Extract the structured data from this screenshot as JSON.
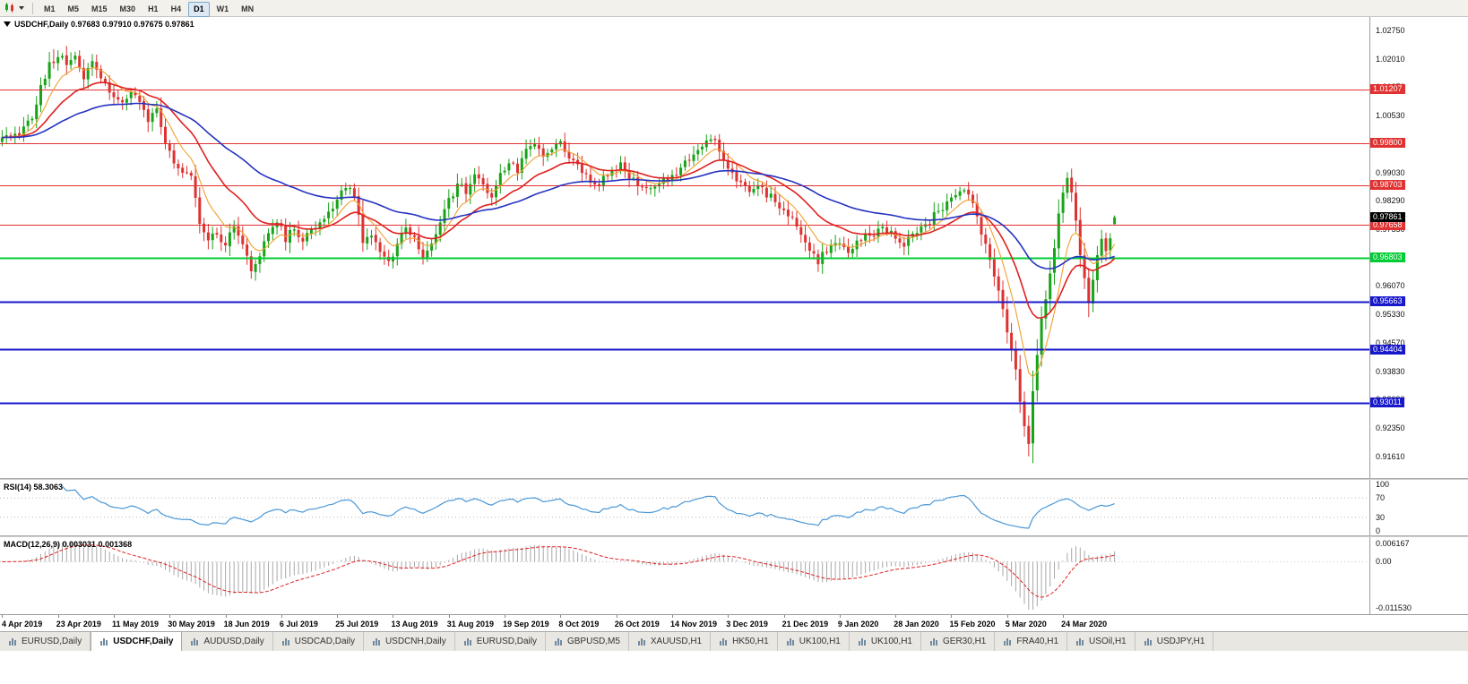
{
  "toolbar": {
    "timeframes": [
      "M1",
      "M5",
      "M15",
      "M30",
      "H1",
      "H4",
      "D1",
      "W1",
      "MN"
    ],
    "active_timeframe": "D1"
  },
  "price_chart": {
    "header": "USDCHF,Daily 0.97683 0.97910 0.97675 0.97861",
    "y_axis_labels": [
      "1.02750",
      "1.02010",
      "1.01270",
      "1.00530",
      "0.99800",
      "0.99030",
      "0.98290",
      "0.97550",
      "0.96810",
      "0.96070",
      "0.95330",
      "0.94570",
      "0.93830",
      "0.93090",
      "0.92350",
      "0.91610"
    ],
    "current_price_label": "0.97861"
  },
  "rsi_panel": {
    "label": "RSI(14) 58.3063",
    "axis_labels": [
      "100",
      "70",
      "30",
      "0"
    ],
    "guide_levels": [
      70,
      30
    ]
  },
  "macd_panel": {
    "label": "MACD(12,26,9) 0.003031 0.001368",
    "axis_labels": {
      "top": "0.006167",
      "zero": "0.00",
      "bottom": "-0.011530"
    }
  },
  "time_axis": {
    "labels": [
      "4 Apr 2019",
      "23 Apr 2019",
      "11 May 2019",
      "30 May 2019",
      "18 Jun 2019",
      "6 Jul 2019",
      "25 Jul 2019",
      "13 Aug 2019",
      "31 Aug 2019",
      "19 Sep 2019",
      "8 Oct 2019",
      "26 Oct 2019",
      "14 Nov 2019",
      "3 Dec 2019",
      "21 Dec 2019",
      "9 Jan 2020",
      "28 Jan 2020",
      "15 Feb 2020",
      "5 Mar 2020",
      "24 Mar 2020"
    ]
  },
  "tabs": {
    "items": [
      "EURUSD,Daily",
      "USDCHF,Daily",
      "AUDUSD,Daily",
      "USDCAD,Daily",
      "USDCNH,Daily",
      "EURUSD,Daily",
      "GBPUSD,M5",
      "XAUUSD,H1",
      "HK50,H1",
      "UK100,H1",
      "UK100,H1",
      "GER30,H1",
      "FRA40,H1",
      "USOil,H1",
      "USDJPY,H1"
    ],
    "active_index": 1
  },
  "chart_data": {
    "type": "candlestick",
    "symbol": "USDCHF",
    "timeframe": "Daily",
    "last_ohlc": {
      "open": 0.97683,
      "high": 0.9791,
      "low": 0.97675,
      "close": 0.97861
    },
    "n_candles": 260,
    "x_label_every": 13,
    "y_range": [
      0.9104,
      1.031
    ],
    "colors": {
      "up": "#18a318",
      "down": "#dd3232",
      "background": "#ffffff"
    },
    "close_anchors": [
      [
        0,
        0.9995
      ],
      [
        4,
        1.0005
      ],
      [
        7,
        1.0045
      ],
      [
        9,
        1.013
      ],
      [
        11,
        1.0185
      ],
      [
        13,
        1.0205
      ],
      [
        15,
        1.0192
      ],
      [
        17,
        1.0206
      ],
      [
        19,
        1.0158
      ],
      [
        21,
        1.0188
      ],
      [
        23,
        1.0148
      ],
      [
        26,
        1.0098
      ],
      [
        28,
        1.0085
      ],
      [
        30,
        1.0112
      ],
      [
        32,
        1.0088
      ],
      [
        34,
        1.0045
      ],
      [
        36,
        1.0062
      ],
      [
        38,
        0.9985
      ],
      [
        40,
        0.9932
      ],
      [
        42,
        0.9895
      ],
      [
        44,
        0.9902
      ],
      [
        46,
        0.9775
      ],
      [
        48,
        0.9725
      ],
      [
        50,
        0.9748
      ],
      [
        52,
        0.9712
      ],
      [
        54,
        0.9762
      ],
      [
        56,
        0.9722
      ],
      [
        58,
        0.9642
      ],
      [
        60,
        0.9682
      ],
      [
        62,
        0.9752
      ],
      [
        64,
        0.9772
      ],
      [
        66,
        0.9732
      ],
      [
        68,
        0.9755
      ],
      [
        70,
        0.9722
      ],
      [
        72,
        0.9748
      ],
      [
        74,
        0.9775
      ],
      [
        76,
        0.9792
      ],
      [
        78,
        0.9832
      ],
      [
        80,
        0.9868
      ],
      [
        82,
        0.9838
      ],
      [
        84,
        0.9728
      ],
      [
        86,
        0.9748
      ],
      [
        88,
        0.9702
      ],
      [
        90,
        0.9672
      ],
      [
        92,
        0.9708
      ],
      [
        94,
        0.9755
      ],
      [
        96,
        0.9735
      ],
      [
        98,
        0.9682
      ],
      [
        100,
        0.9728
      ],
      [
        102,
        0.9772
      ],
      [
        104,
        0.9828
      ],
      [
        106,
        0.9872
      ],
      [
        108,
        0.9855
      ],
      [
        110,
        0.9892
      ],
      [
        112,
        0.9868
      ],
      [
        114,
        0.9845
      ],
      [
        116,
        0.9898
      ],
      [
        118,
        0.9928
      ],
      [
        120,
        0.9912
      ],
      [
        122,
        0.9962
      ],
      [
        124,
        0.9988
      ],
      [
        126,
        0.9952
      ],
      [
        128,
        0.9968
      ],
      [
        130,
        0.9975
      ],
      [
        132,
        0.9938
      ],
      [
        134,
        0.9915
      ],
      [
        136,
        0.9892
      ],
      [
        138,
        0.9868
      ],
      [
        140,
        0.9888
      ],
      [
        142,
        0.9912
      ],
      [
        144,
        0.9922
      ],
      [
        146,
        0.9895
      ],
      [
        148,
        0.9872
      ],
      [
        150,
        0.9858
      ],
      [
        152,
        0.9872
      ],
      [
        154,
        0.9885
      ],
      [
        156,
        0.9892
      ],
      [
        158,
        0.9912
      ],
      [
        160,
        0.9938
      ],
      [
        162,
        0.9962
      ],
      [
        164,
        0.9978
      ],
      [
        166,
        0.9988
      ],
      [
        168,
        0.9938
      ],
      [
        170,
        0.9902
      ],
      [
        172,
        0.9878
      ],
      [
        174,
        0.9858
      ],
      [
        176,
        0.9872
      ],
      [
        178,
        0.9842
      ],
      [
        180,
        0.9832
      ],
      [
        182,
        0.9802
      ],
      [
        184,
        0.9778
      ],
      [
        186,
        0.9738
      ],
      [
        188,
        0.9698
      ],
      [
        190,
        0.9672
      ],
      [
        192,
        0.9702
      ],
      [
        195,
        0.9718
      ],
      [
        197,
        0.9692
      ],
      [
        199,
        0.9722
      ],
      [
        201,
        0.9745
      ],
      [
        203,
        0.9732
      ],
      [
        205,
        0.9762
      ],
      [
        208,
        0.9738
      ],
      [
        210,
        0.9712
      ],
      [
        212,
        0.9745
      ],
      [
        214,
        0.9765
      ],
      [
        216,
        0.9778
      ],
      [
        218,
        0.9808
      ],
      [
        220,
        0.9818
      ],
      [
        222,
        0.9838
      ],
      [
        224,
        0.9852
      ],
      [
        226,
        0.9832
      ],
      [
        228,
        0.9742
      ],
      [
        230,
        0.9672
      ],
      [
        232,
        0.9602
      ],
      [
        234,
        0.9492
      ],
      [
        235,
        0.9435
      ],
      [
        236,
        0.9392
      ],
      [
        237,
        0.9312
      ],
      [
        238,
        0.9242
      ],
      [
        239,
        0.9192
      ],
      [
        240,
        0.9332
      ],
      [
        241,
        0.9422
      ],
      [
        242,
        0.9512
      ],
      [
        243,
        0.9562
      ],
      [
        244,
        0.9632
      ],
      [
        245,
        0.9702
      ],
      [
        246,
        0.9792
      ],
      [
        247,
        0.9852
      ],
      [
        248,
        0.9892
      ],
      [
        249,
        0.9842
      ],
      [
        250,
        0.9782
      ],
      [
        251,
        0.9692
      ],
      [
        252,
        0.9622
      ],
      [
        253,
        0.9562
      ],
      [
        254,
        0.9612
      ],
      [
        255,
        0.9682
      ],
      [
        256,
        0.9722
      ],
      [
        257,
        0.9702
      ],
      [
        258,
        0.9742
      ],
      [
        259,
        0.97861
      ]
    ],
    "forced_extremes": [
      {
        "index": 239,
        "low": 0.9161
      },
      {
        "index": 12,
        "high": 1.0226
      },
      {
        "index": 253,
        "low": 0.9525
      }
    ],
    "levels": [
      {
        "price": 1.01207,
        "label": "1.01207",
        "color": "#e23131",
        "width": 1
      },
      {
        "price": 0.998,
        "label": "0.99800",
        "color": "#e23131",
        "width": 1
      },
      {
        "price": 0.98703,
        "label": "0.98703",
        "color": "#e23131",
        "width": 1
      },
      {
        "price": 0.97658,
        "label": "0.97658",
        "color": "#e23131",
        "width": 1
      },
      {
        "price": 0.96803,
        "label": "0.96803",
        "color": "#00cc33",
        "width": 2
      },
      {
        "price": 0.95663,
        "label": "0.95663",
        "color": "#1717cc",
        "width": 2
      },
      {
        "price": 0.94404,
        "label": "0.94404",
        "color": "#1717cc",
        "width": 2
      },
      {
        "price": 0.93011,
        "label": "0.93011",
        "color": "#1717cc",
        "width": 2
      }
    ],
    "moving_averages": [
      {
        "type": "ema",
        "period": 8,
        "color": "#f0a030",
        "width": 1.1
      },
      {
        "type": "ema",
        "period": 21,
        "color": "#e02020",
        "width": 1.6
      },
      {
        "type": "ema",
        "period": 55,
        "color": "#2433c0",
        "width": 1.6
      }
    ],
    "indicators": {
      "rsi": {
        "period": 14,
        "value": 58.3063,
        "color": "#4a97d6"
      },
      "macd": {
        "fast": 12,
        "slow": 26,
        "signal": 9,
        "main_value": 0.003031,
        "signal_value": 0.001368,
        "bar_color": "#a8a8a8",
        "signal_color": "#e02020"
      }
    }
  }
}
